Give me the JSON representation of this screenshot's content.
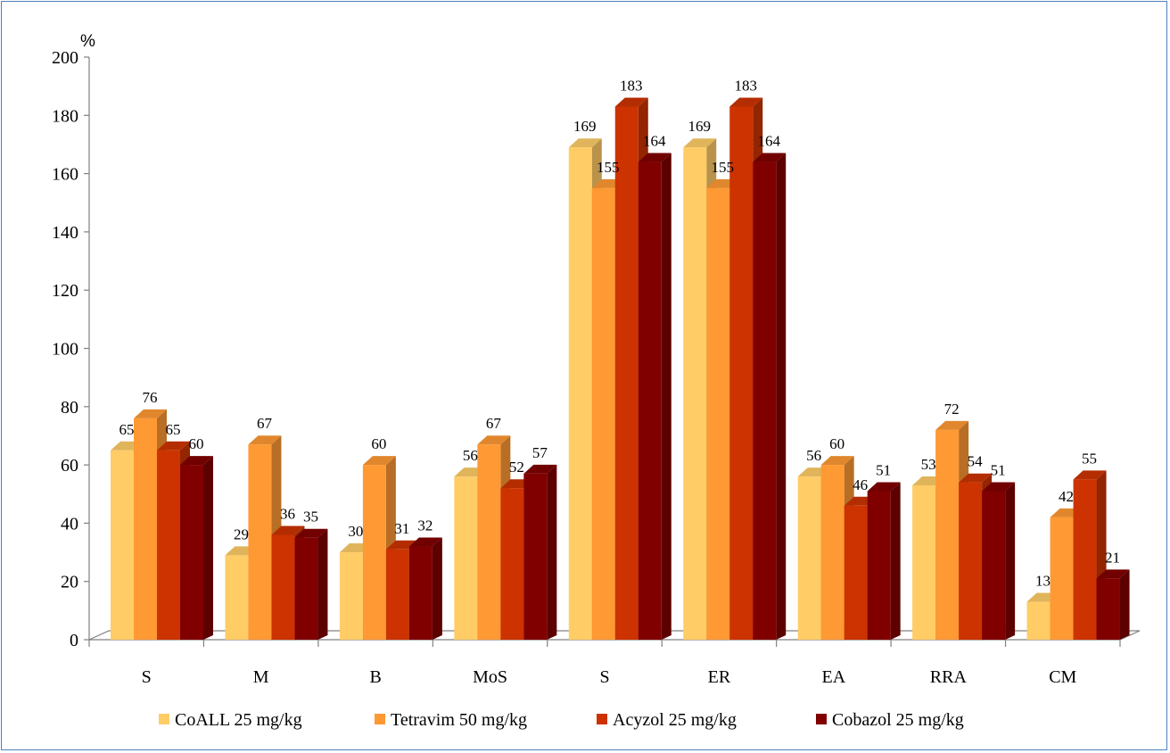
{
  "chart_data": {
    "type": "bar",
    "style": "3d-clustered-column",
    "y_unit": "%",
    "ylim": [
      0,
      200
    ],
    "yticks": [
      0,
      20,
      40,
      60,
      80,
      100,
      120,
      140,
      160,
      180,
      200
    ],
    "categories": [
      "S",
      "M",
      "B",
      "MoS",
      "S",
      "ER",
      "EA",
      "RRA",
      "CM"
    ],
    "series": [
      {
        "name": "CoALL 25 mg/kg",
        "color": "#ffcc66",
        "values": [
          65,
          29,
          30,
          56,
          169,
          169,
          56,
          53,
          13
        ]
      },
      {
        "name": "Tetravim 50 mg/kg",
        "color": "#ff9933",
        "values": [
          76,
          67,
          60,
          67,
          155,
          155,
          60,
          72,
          42
        ]
      },
      {
        "name": "Acyzol 25 mg/kg",
        "color": "#cc3300",
        "values": [
          65,
          36,
          31,
          52,
          183,
          183,
          46,
          54,
          55
        ]
      },
      {
        "name": "Cobazol 25 mg/kg",
        "color": "#800000",
        "values": [
          60,
          35,
          32,
          57,
          164,
          164,
          51,
          51,
          21
        ]
      }
    ],
    "data_labels": true,
    "legend_position": "bottom",
    "grid": false
  }
}
